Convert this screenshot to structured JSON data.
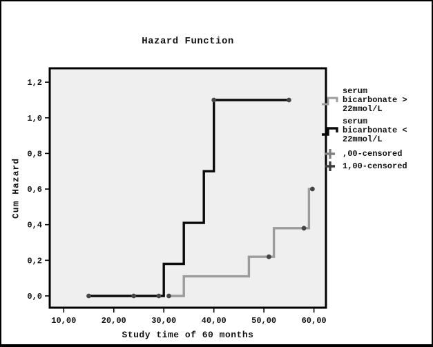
{
  "window": {
    "background": "#ffffff",
    "border_color": "#000000"
  },
  "chart_data": {
    "type": "line",
    "subtype": "step-cumulative-hazard",
    "title": "Hazard Function",
    "xlabel": "Study time of 60 months",
    "ylabel": "Cum Hazard",
    "plot_background": "#f0eff0",
    "frame_color": "#000000",
    "grid": false,
    "axes": {
      "x": {
        "min": 7.2,
        "max": 62.4,
        "tick_values": [
          10,
          20,
          30,
          40,
          50,
          60
        ],
        "tick_labels": [
          "10,00",
          "20,00",
          "30,00",
          "40,00",
          "50,00",
          "60,00"
        ]
      },
      "y": {
        "min": -0.066,
        "max": 1.278,
        "tick_values": [
          0.0,
          0.2,
          0.4,
          0.6,
          0.8,
          1.0,
          1.2
        ],
        "tick_labels": [
          "0,0",
          "0,2",
          "0,4",
          "0,6",
          "0,8",
          "1,0",
          "1,2"
        ]
      }
    },
    "series": [
      {
        "name": "serum bicarbonate > 22mmol/L",
        "color": "#9c9c9c",
        "points": [
          [
            31,
            0
          ],
          [
            34,
            0
          ],
          [
            34,
            0.11
          ],
          [
            47,
            0.11
          ],
          [
            47,
            0.22
          ],
          [
            52,
            0.22
          ],
          [
            52,
            0.38
          ],
          [
            59,
            0.38
          ],
          [
            59,
            0.6
          ],
          [
            59.7,
            0.6
          ]
        ],
        "censored_points": [
          [
            31,
            0
          ],
          [
            51,
            0.22
          ],
          [
            58,
            0.38
          ],
          [
            59.7,
            0.6
          ]
        ]
      },
      {
        "name": "serum bicarbonate < 22mmol/L",
        "color": "#0a0a0a",
        "points": [
          [
            15,
            0
          ],
          [
            30,
            0
          ],
          [
            30,
            0.18
          ],
          [
            34,
            0.18
          ],
          [
            34,
            0.41
          ],
          [
            38,
            0.41
          ],
          [
            38,
            0.7
          ],
          [
            40,
            0.7
          ],
          [
            40,
            1.1
          ],
          [
            55,
            1.1
          ]
        ],
        "censored_points": [
          [
            15,
            0
          ],
          [
            24,
            0
          ],
          [
            29,
            0
          ],
          [
            40,
            1.1
          ],
          [
            55,
            1.1
          ]
        ]
      }
    ],
    "marker_color": "#454545",
    "legend": {
      "position": "right",
      "items": [
        {
          "label": "serum\nbicarbonate >\n22mmol/L",
          "symbol": "step-line",
          "color": "#9c9c9c"
        },
        {
          "label": "serum\nbicarbonate <\n22mmol/L",
          "symbol": "step-line",
          "color": "#0a0a0a"
        },
        {
          "label": ",00-censored",
          "symbol": "plus",
          "color": "#808080"
        },
        {
          "label": "1,00-censored",
          "symbol": "plus",
          "color": "#3d3d3d"
        }
      ]
    }
  }
}
